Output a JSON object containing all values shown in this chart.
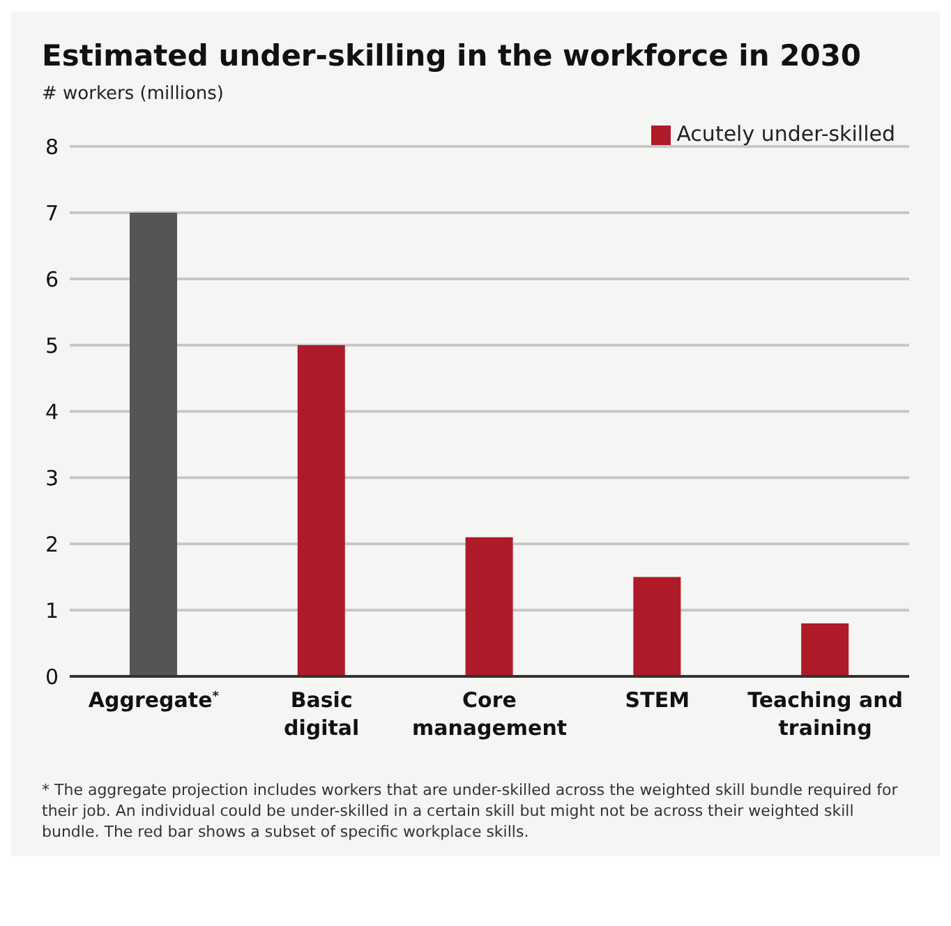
{
  "chart_data": {
    "type": "bar",
    "title": "Estimated under-skilling in the workforce in 2030",
    "ylabel": "# workers (millions)",
    "categories": [
      "Aggregate$^{*}$",
      "Basic digital",
      "Core management",
      "STEM",
      "Teaching and training"
    ],
    "series": [
      {
        "name": "Acutely under-skilled",
        "color": "#ae1a28",
        "colors": [
          "#555555",
          "#ae1a28",
          "#ae1a28",
          "#ae1a28",
          "#ae1a28"
        ],
        "values": [
          7,
          5,
          2.1,
          1.5,
          0.8
        ]
      }
    ],
    "ylim": [
      0,
      8
    ],
    "yticks": [
      0,
      1,
      2,
      3,
      4,
      5,
      6,
      7,
      8
    ],
    "grid": "y",
    "legend": "top right",
    "annotations": [
      "* The aggregate projection includes workers that are under-skilled across the weighted skill bundle required for their job. An individual could be under-skilled in a certain skill but might not be across their weighted skill bundle. The red bar shows a subset of specific workplace skills."
    ]
  }
}
